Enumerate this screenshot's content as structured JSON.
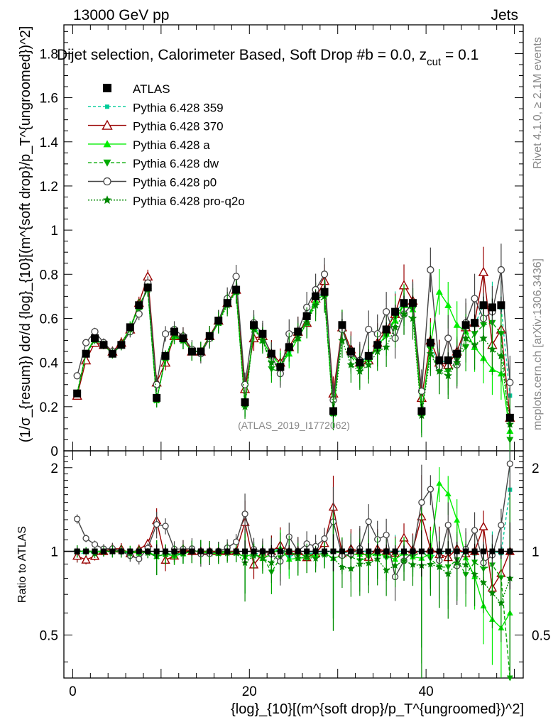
{
  "header": {
    "energy": "13000 GeV pp",
    "process": "Jets"
  },
  "plot_title": "Dijet selection, Calorimeter Based, Soft Drop #b = 0.0, z",
  "plot_title_sub": "cut",
  "plot_title_tail": " = 0.1",
  "analysis_id": "(ATLAS_2019_I1772062)",
  "side_labels": {
    "rivet": "Rivet 4.1.0, ≥ 2.1M events",
    "mcplots": "mcplots.cern.ch [arXiv:1306.3436]"
  },
  "y_label_main": "(1/σ_{resum}) dσ/d {log}_{10}[(m^{soft drop}/p_T^{ungroomed})^2]",
  "y_label_ratio": "Ratio to ATLAS",
  "x_label": "{log}_{10}[(m^{soft drop}/p_T^{ungroomed})^2]",
  "legend": [
    {
      "name": "ATLAS",
      "color": "#000000",
      "marker": "square"
    },
    {
      "name": "Pythia 6.428 359",
      "color": "#00cc99",
      "marker": "small-square",
      "dash": "4,3"
    },
    {
      "name": "Pythia 6.428 370",
      "color": "#990000",
      "marker": "open-triangle"
    },
    {
      "name": "Pythia 6.428 a",
      "color": "#00ee00",
      "marker": "triangle"
    },
    {
      "name": "Pythia 6.428 dw",
      "color": "#00aa00",
      "marker": "inverted-triangle",
      "dash": "5,3"
    },
    {
      "name": "Pythia 6.428 p0",
      "color": "#444444",
      "marker": "open-circle"
    },
    {
      "name": "Pythia 6.428 pro-q2o",
      "color": "#008800",
      "marker": "star",
      "dash": "2,2"
    }
  ],
  "chart_data": {
    "type": "line",
    "title": "Dijet selection, Calorimeter Based, Soft Drop #b = 0.0, z_cut = 0.1",
    "xlabel": "{log}_{10}[(m^{soft drop}/p_T^{ungroomed})^2]",
    "ylabel": "(1/σ_{resum}) dσ/d {log}_{10}[(m^{soft drop}/p_T^{ungroomed})^2]",
    "xlim": [
      -1,
      51
    ],
    "ylim": [
      0,
      1.93
    ],
    "ratio_ylim": [
      0.35,
      2.3
    ],
    "x_ticks": [
      0,
      20,
      40
    ],
    "y_ticks": [
      0,
      0.2,
      0.4,
      0.6,
      0.8,
      1,
      1.2,
      1.4,
      1.6,
      1.8
    ],
    "ratio_ticks": [
      0.5,
      1,
      2
    ],
    "x": [
      0.5,
      1.5,
      2.5,
      3.5,
      4.5,
      5.5,
      6.5,
      7.5,
      8.5,
      9.5,
      10.5,
      11.5,
      12.5,
      13.5,
      14.5,
      15.5,
      16.5,
      17.5,
      18.5,
      19.5,
      20.5,
      21.5,
      22.5,
      23.5,
      24.5,
      25.5,
      26.5,
      27.5,
      28.5,
      29.5,
      30.5,
      31.5,
      32.5,
      33.5,
      34.5,
      35.5,
      36.5,
      37.5,
      38.5,
      39.5,
      40.5,
      41.5,
      42.5,
      43.5,
      44.5,
      45.5,
      46.5,
      47.5,
      48.5,
      49.5
    ],
    "series": [
      {
        "name": "ATLAS",
        "values": [
          0.26,
          0.44,
          0.51,
          0.48,
          0.44,
          0.48,
          0.56,
          0.66,
          0.74,
          0.24,
          0.43,
          0.54,
          0.51,
          0.45,
          0.45,
          0.52,
          0.59,
          0.67,
          0.73,
          0.22,
          0.57,
          0.53,
          0.44,
          0.38,
          0.47,
          0.54,
          0.61,
          0.7,
          0.72,
          0.18,
          0.57,
          0.45,
          0.4,
          0.43,
          0.48,
          0.55,
          0.63,
          0.67,
          0.67,
          0.18,
          0.49,
          0.41,
          0.41,
          0.44,
          0.57,
          0.58,
          0.66,
          0.65,
          0.66,
          0.15
        ]
      },
      {
        "name": "Pythia 6.428 359",
        "values": [
          0.25,
          0.44,
          0.5,
          0.48,
          0.44,
          0.48,
          0.55,
          0.66,
          0.73,
          0.23,
          0.42,
          0.53,
          0.5,
          0.45,
          0.45,
          0.51,
          0.59,
          0.67,
          0.72,
          0.21,
          0.56,
          0.52,
          0.44,
          0.39,
          0.45,
          0.53,
          0.6,
          0.69,
          0.72,
          0.18,
          0.56,
          0.45,
          0.4,
          0.43,
          0.48,
          0.55,
          0.63,
          0.67,
          0.66,
          0.18,
          0.47,
          0.4,
          0.41,
          0.44,
          0.56,
          0.57,
          0.66,
          0.65,
          0.65,
          0.25
        ]
      },
      {
        "name": "Pythia 6.428 370",
        "values": [
          0.25,
          0.41,
          0.49,
          0.48,
          0.45,
          0.49,
          0.55,
          0.67,
          0.79,
          0.31,
          0.4,
          0.52,
          0.52,
          0.45,
          0.45,
          0.52,
          0.59,
          0.67,
          0.73,
          0.28,
          0.51,
          0.52,
          0.44,
          0.4,
          0.47,
          0.54,
          0.58,
          0.69,
          0.77,
          0.26,
          0.56,
          0.46,
          0.4,
          0.41,
          0.49,
          0.55,
          0.62,
          0.75,
          0.68,
          0.24,
          0.5,
          0.4,
          0.39,
          0.45,
          0.56,
          0.58,
          0.81,
          0.48,
          0.55,
          0.15
        ]
      },
      {
        "name": "Pythia 6.428 a",
        "values": [
          0.26,
          0.44,
          0.51,
          0.48,
          0.44,
          0.48,
          0.56,
          0.65,
          0.74,
          0.23,
          0.42,
          0.52,
          0.5,
          0.45,
          0.45,
          0.51,
          0.58,
          0.67,
          0.72,
          0.21,
          0.56,
          0.5,
          0.43,
          0.39,
          0.44,
          0.51,
          0.58,
          0.68,
          0.71,
          0.17,
          0.55,
          0.44,
          0.39,
          0.42,
          0.47,
          0.53,
          0.59,
          0.66,
          0.64,
          0.17,
          0.48,
          0.72,
          0.66,
          0.57,
          0.54,
          0.47,
          0.42,
          0.37,
          0.35,
          0.09
        ]
      },
      {
        "name": "Pythia 6.428 dw",
        "values": [
          0.26,
          0.44,
          0.51,
          0.48,
          0.44,
          0.48,
          0.56,
          0.66,
          0.73,
          0.23,
          0.42,
          0.52,
          0.5,
          0.45,
          0.45,
          0.51,
          0.59,
          0.67,
          0.72,
          0.21,
          0.55,
          0.51,
          0.37,
          0.36,
          0.47,
          0.52,
          0.59,
          0.69,
          0.7,
          0.18,
          0.56,
          0.43,
          0.37,
          0.41,
          0.47,
          0.52,
          0.61,
          0.66,
          0.64,
          0.18,
          0.46,
          0.36,
          0.36,
          0.41,
          0.47,
          0.53,
          0.57,
          0.58,
          0.53,
          0.05
        ]
      },
      {
        "name": "Pythia 6.428 p0",
        "values": [
          0.34,
          0.49,
          0.54,
          0.49,
          0.45,
          0.48,
          0.54,
          0.62,
          0.76,
          0.3,
          0.53,
          0.55,
          0.52,
          0.46,
          0.44,
          0.51,
          0.59,
          0.69,
          0.79,
          0.3,
          0.58,
          0.53,
          0.43,
          0.35,
          0.53,
          0.54,
          0.65,
          0.73,
          0.8,
          0.23,
          0.55,
          0.44,
          0.41,
          0.55,
          0.53,
          0.63,
          0.51,
          0.62,
          0.67,
          0.27,
          0.82,
          0.38,
          0.51,
          0.39,
          0.58,
          0.69,
          0.6,
          0.63,
          0.82,
          0.31
        ]
      },
      {
        "name": "Pythia 6.428 pro-q2o",
        "values": [
          0.26,
          0.44,
          0.5,
          0.48,
          0.44,
          0.48,
          0.55,
          0.66,
          0.73,
          0.23,
          0.42,
          0.53,
          0.5,
          0.45,
          0.45,
          0.52,
          0.58,
          0.66,
          0.72,
          0.2,
          0.55,
          0.5,
          0.4,
          0.38,
          0.47,
          0.51,
          0.58,
          0.66,
          0.7,
          0.17,
          0.5,
          0.39,
          0.36,
          0.39,
          0.45,
          0.47,
          0.56,
          0.62,
          0.6,
          0.16,
          0.44,
          0.36,
          0.34,
          0.4,
          0.51,
          0.48,
          0.51,
          0.46,
          0.43,
          0.12
        ]
      }
    ]
  }
}
